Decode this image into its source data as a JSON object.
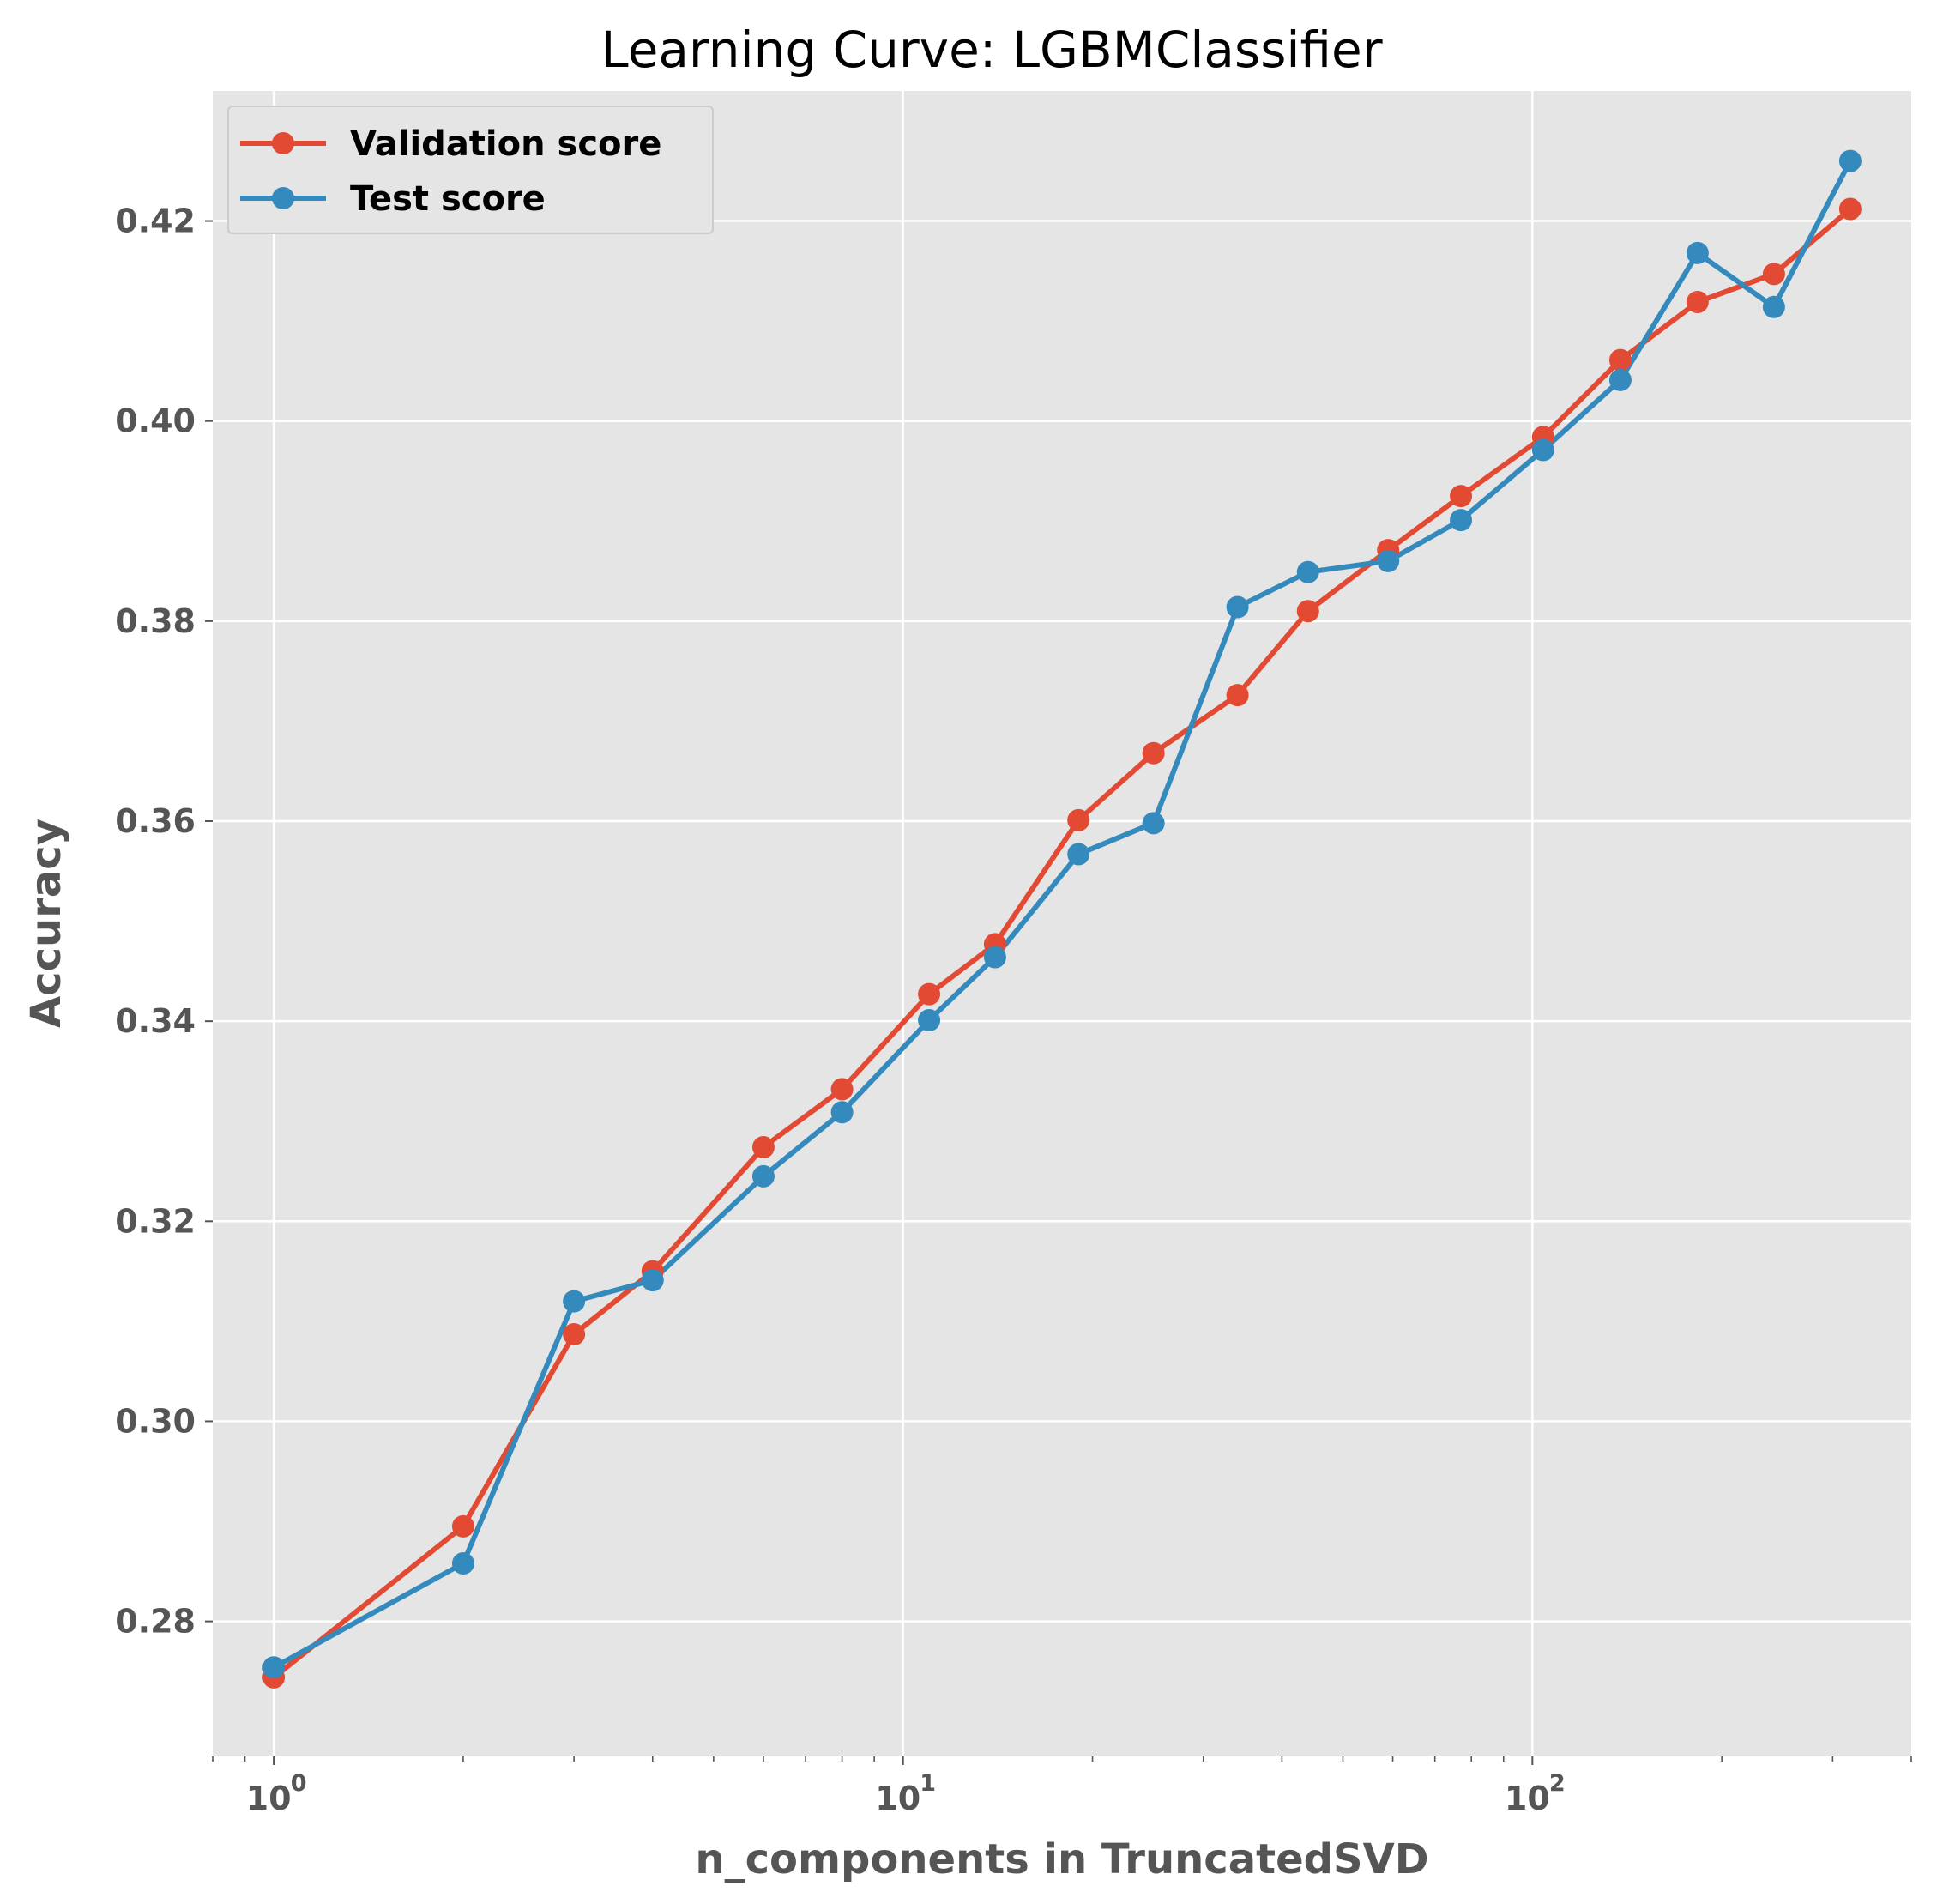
{
  "chart_data": {
    "type": "line",
    "title": "Learning Curve: LGBMClassifier",
    "xlabel": "n_components in TruncatedSVD",
    "ylabel": "Accuracy",
    "xscale": "log",
    "xlim": [
      0.8,
      400
    ],
    "ylim": [
      0.2665,
      0.433
    ],
    "x_major_ticks": [
      {
        "value": 1,
        "base": "10",
        "exp": "0"
      },
      {
        "value": 10,
        "base": "10",
        "exp": "1"
      },
      {
        "value": 100,
        "base": "10",
        "exp": "2"
      }
    ],
    "y_ticks": [
      0.28,
      0.3,
      0.32,
      0.34,
      0.36,
      0.38,
      0.4,
      0.42
    ],
    "y_tick_labels": [
      "0.28",
      "0.30",
      "0.32",
      "0.34",
      "0.36",
      "0.38",
      "0.40",
      "0.42"
    ],
    "grid": true,
    "legend_position": "top-left",
    "x": [
      1,
      2,
      3,
      4,
      6,
      8,
      11,
      14,
      19,
      25,
      34,
      44,
      59,
      77,
      104,
      138,
      183,
      242,
      320
    ],
    "series": [
      {
        "name": "Validation score",
        "color": "#E24A33",
        "values": [
          0.2744,
          0.2895,
          0.3087,
          0.315,
          0.3274,
          0.3332,
          0.3427,
          0.3477,
          0.3601,
          0.3668,
          0.3726,
          0.381,
          0.3871,
          0.3925,
          0.3984,
          0.4061,
          0.4119,
          0.4147,
          0.4212
        ]
      },
      {
        "name": "Test score",
        "color": "#348ABD",
        "values": [
          0.2754,
          0.2858,
          0.312,
          0.3141,
          0.3245,
          0.3309,
          0.3401,
          0.3464,
          0.3567,
          0.3598,
          0.3814,
          0.3849,
          0.386,
          0.3901,
          0.3971,
          0.4041,
          0.4168,
          0.4114,
          0.426
        ]
      }
    ]
  }
}
